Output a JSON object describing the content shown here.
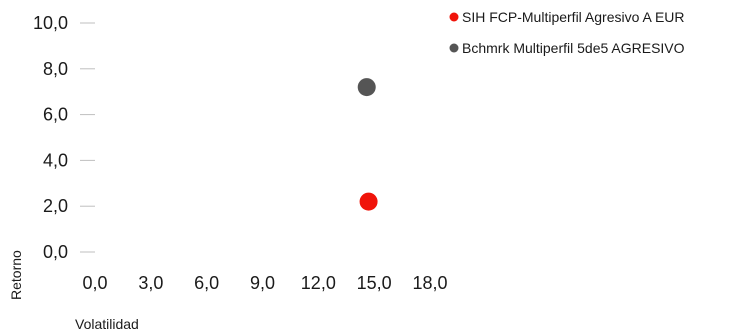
{
  "chart_data": {
    "type": "scatter",
    "xlabel": "Volatilidad",
    "ylabel": "Retorno",
    "xlim": [
      0,
      18
    ],
    "ylim": [
      0,
      10
    ],
    "x_ticks": [
      "0,0",
      "3,0",
      "6,0",
      "9,0",
      "12,0",
      "15,0",
      "18,0"
    ],
    "y_ticks": [
      "0,0",
      "2,0",
      "4,0",
      "6,0",
      "8,0",
      "10,0"
    ],
    "x_tick_values": [
      0,
      3,
      6,
      9,
      12,
      15,
      18
    ],
    "y_tick_values": [
      0,
      2,
      4,
      6,
      8,
      10
    ],
    "grid": false,
    "legend_position": "top-right",
    "series": [
      {
        "name": "SIH FCP-Multiperfil Agresivo A EUR",
        "color": "#f0140a",
        "x": 14.7,
        "y": 2.2
      },
      {
        "name": "Bchmrk Multiperfil 5de5 AGRESIVO",
        "color": "#555555",
        "x": 14.6,
        "y": 7.2
      }
    ]
  }
}
